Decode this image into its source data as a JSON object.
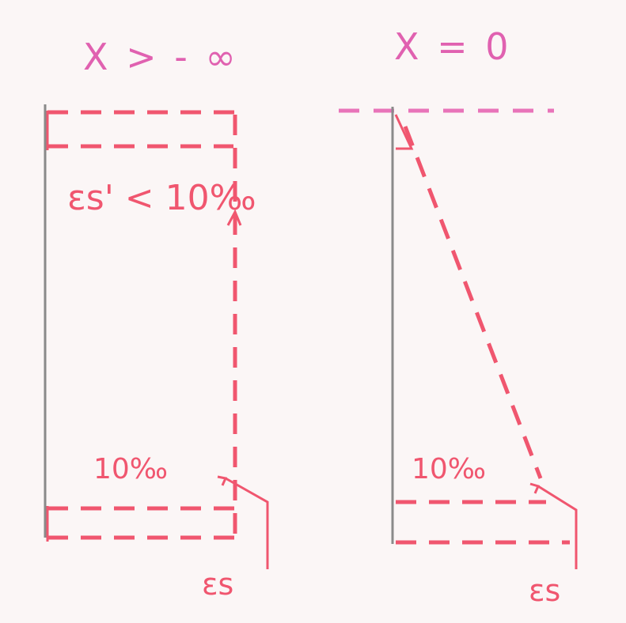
{
  "left_diagram": {
    "title": "X > - ∞",
    "top_label": "εs' < 10‰",
    "bottom_label": "10‰",
    "strain_label": "εs"
  },
  "right_diagram": {
    "title": "X = 0",
    "bottom_label": "10‰",
    "strain_label": "εs"
  },
  "colors": {
    "ink_red": "#f0566f",
    "ink_pink": "#e061b0",
    "section_gray": "#8a8a8a",
    "paper": "#fbf6f6"
  }
}
